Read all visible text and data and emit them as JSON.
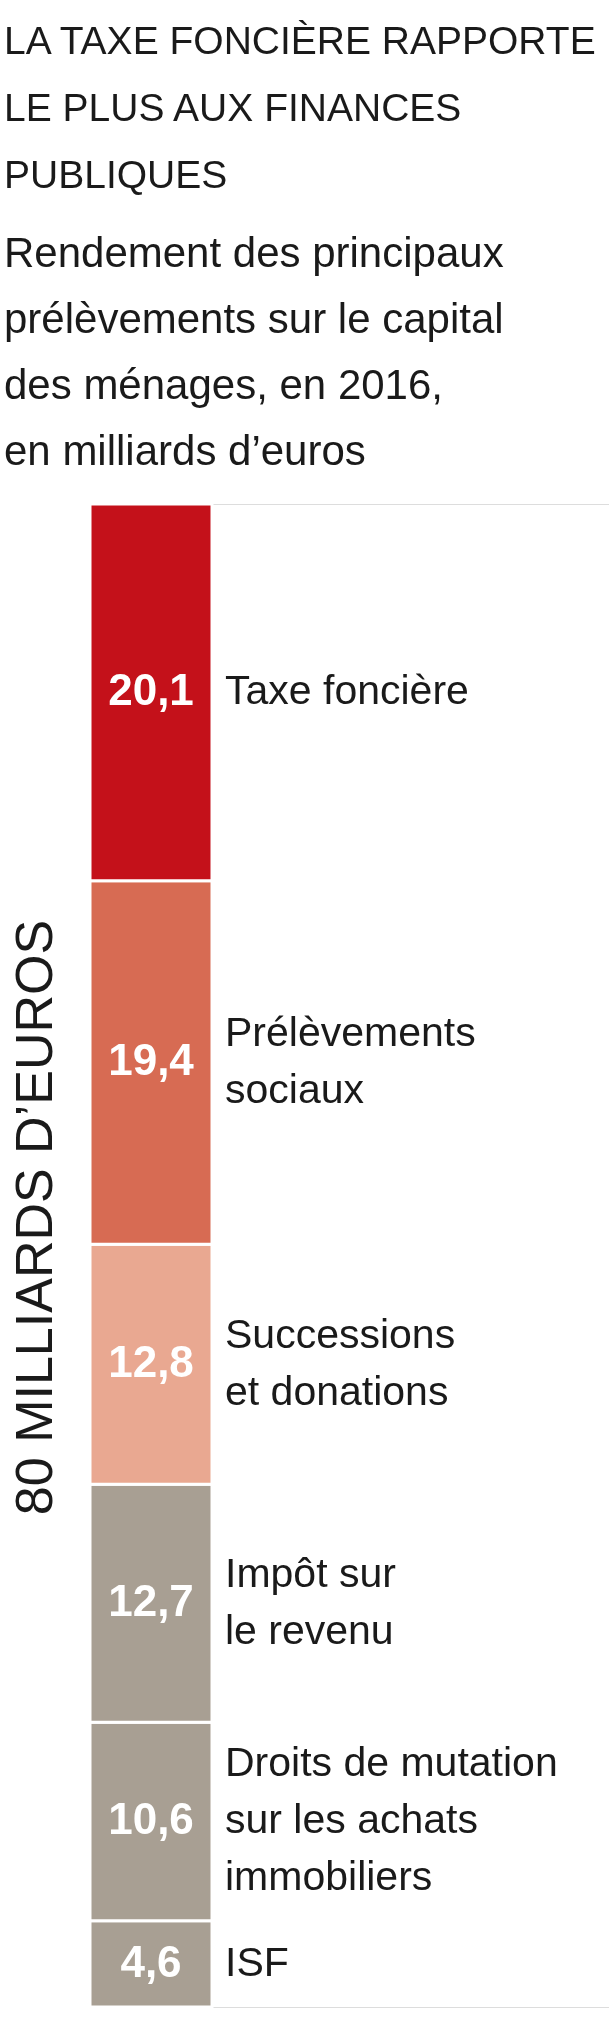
{
  "chart_data": {
    "type": "bar",
    "title": "LA TAXE FONCIÈRE RAPPORTE\nLE PLUS AUX FINANCES\nPUBLIQUES",
    "subtitle": "Rendement des principaux\nprélèvements sur le capital\ndes ménages, en 2016,\nen milliards d’euros",
    "ylabel": "80 MILLIARDS D’EUROS",
    "categories": [
      null
    ],
    "stacked": true,
    "legend": false,
    "tick_labels": false,
    "series": [
      {
        "name": "ISF",
        "color": "#a89f93",
        "values": [
          4.6
        ],
        "value_labels": [
          "4,6"
        ]
      },
      {
        "name": "Droits de mutation\nsur les achats\nimmobiliers",
        "color": "#a89f93",
        "values": [
          10.6
        ],
        "value_labels": [
          "10,6"
        ]
      },
      {
        "name": "Impôt sur\nle revenu",
        "color": "#a89f93",
        "values": [
          12.7
        ],
        "value_labels": [
          "12,7"
        ]
      },
      {
        "name": "Successions\net donations",
        "color": "#e9a891",
        "values": [
          12.8
        ],
        "value_labels": [
          "12,8"
        ]
      },
      {
        "name": "Prélèvements\nsociaux",
        "color": "#d76b53",
        "values": [
          19.4
        ],
        "value_labels": [
          "19,4"
        ]
      },
      {
        "name": "Taxe foncière",
        "color": "#c4111a",
        "values": [
          20.1
        ],
        "value_labels": [
          "20,1"
        ]
      }
    ]
  }
}
